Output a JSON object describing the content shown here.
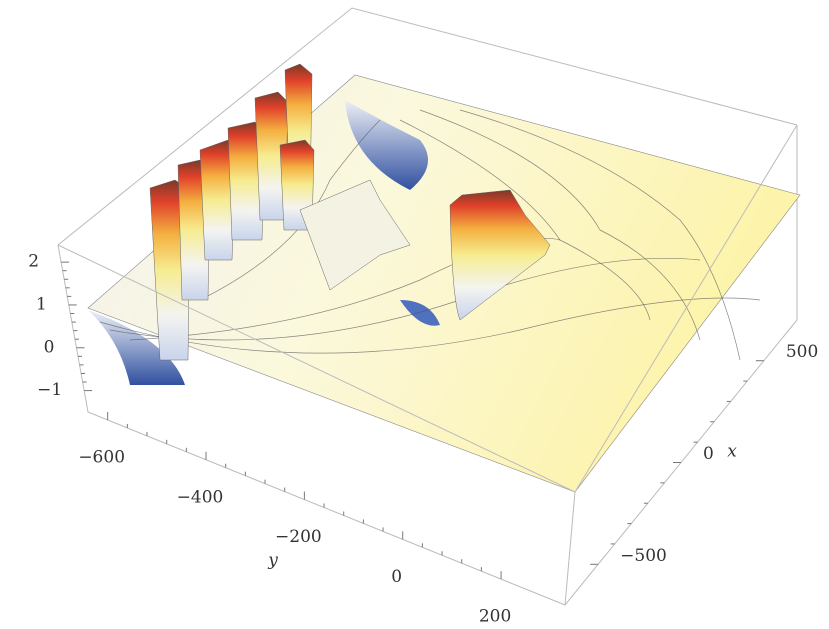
{
  "chart_data": {
    "type": "surface3d",
    "xlabel": "x",
    "ylabel": "y",
    "xlim": [
      -700,
      700
    ],
    "xticks": [
      {
        "value": -500,
        "label": "−500"
      },
      0,
      500
    ],
    "ylim": [
      -640,
      330
    ],
    "yticks": [
      {
        "value": -600,
        "label": "−600"
      },
      {
        "value": -400,
        "label": "−400"
      },
      {
        "value": -200,
        "label": "−200"
      },
      0,
      200
    ],
    "zlim": [
      -1.5,
      2.4
    ],
    "zticks": [
      {
        "value": -1,
        "label": "−1"
      },
      0,
      1,
      2
    ]
  }
}
